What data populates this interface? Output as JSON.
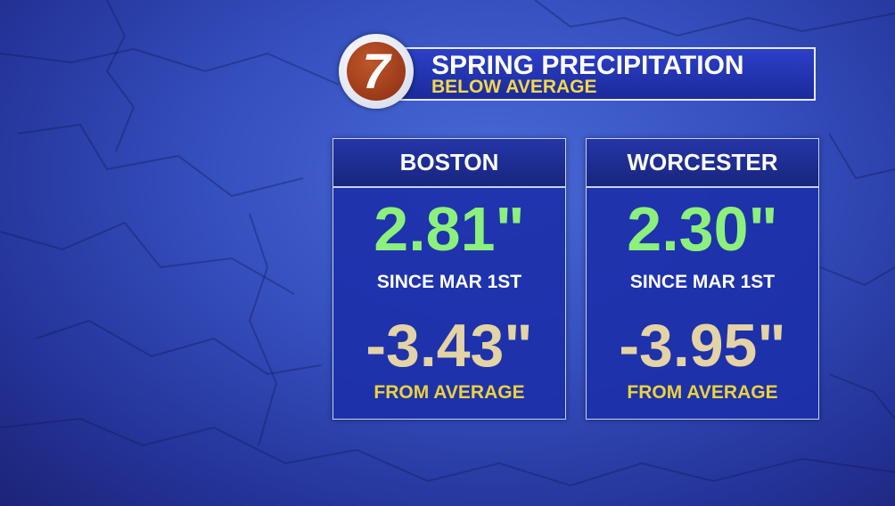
{
  "header": {
    "logo": "7",
    "title": "SPRING PRECIPITATION",
    "subtitle": "BELOW AVERAGE"
  },
  "cards": [
    {
      "city": "BOSTON",
      "total": "2.81\"",
      "total_label": "SINCE MAR 1ST",
      "departure": "-3.43\"",
      "departure_label": "FROM AVERAGE"
    },
    {
      "city": "WORCESTER",
      "total": "2.30\"",
      "total_label": "SINCE MAR 1ST",
      "departure": "-3.95\"",
      "departure_label": "FROM AVERAGE"
    }
  ]
}
